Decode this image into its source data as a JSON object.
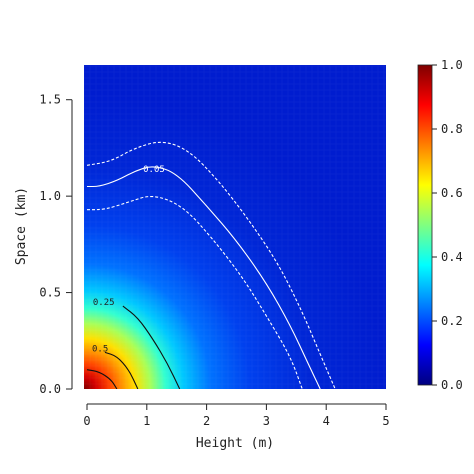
{
  "chart_data": {
    "type": "heatmap",
    "title": "",
    "xlabel": "Height (m)",
    "ylabel": "Space (km)",
    "xlim": [
      0,
      5
    ],
    "ylim": [
      0,
      1.68
    ],
    "x_ticks": [
      0,
      1,
      2,
      3,
      4,
      5
    ],
    "y_ticks": [
      0.0,
      0.5,
      1.0,
      1.5
    ],
    "x_tick_labels": [
      "0",
      "1",
      "2",
      "3",
      "4",
      "5"
    ],
    "y_tick_labels": [
      "0.0",
      "0.5",
      "1.0",
      "1.5"
    ],
    "colorbar": {
      "range": [
        0,
        1
      ],
      "ticks": [
        0.0,
        0.2,
        0.4,
        0.6,
        0.8,
        1.0
      ],
      "tick_labels": [
        "0.0",
        "0.2",
        "0.4",
        "0.6",
        "0.8",
        "1.0"
      ],
      "colormap": "jet"
    },
    "field": {
      "description": "value decays from peak ~1.0 at origin",
      "peak_value": 1.0
    },
    "contours": [
      {
        "level": 0.05,
        "label": "0.05",
        "color": "#ffffff",
        "style": "solid",
        "points": [
          [
            0,
            1.05
          ],
          [
            0.2,
            1.05
          ],
          [
            0.5,
            1.08
          ],
          [
            0.8,
            1.13
          ],
          [
            1.1,
            1.16
          ],
          [
            1.5,
            1.12
          ],
          [
            2.0,
            0.95
          ],
          [
            2.5,
            0.77
          ],
          [
            3.0,
            0.55
          ],
          [
            3.4,
            0.33
          ],
          [
            3.7,
            0.13
          ],
          [
            3.9,
            0.0
          ]
        ]
      },
      {
        "level": 0.05,
        "label": "",
        "color": "#ffffff",
        "style": "dashed",
        "points": [
          [
            0,
            1.16
          ],
          [
            0.4,
            1.18
          ],
          [
            0.8,
            1.25
          ],
          [
            1.25,
            1.29
          ],
          [
            1.7,
            1.24
          ],
          [
            2.2,
            1.08
          ],
          [
            2.7,
            0.88
          ],
          [
            3.2,
            0.65
          ],
          [
            3.6,
            0.4
          ],
          [
            3.9,
            0.18
          ],
          [
            4.15,
            0.0
          ]
        ]
      },
      {
        "level": 0.05,
        "label": "",
        "color": "#ffffff",
        "style": "dashed",
        "points": [
          [
            0,
            0.93
          ],
          [
            0.3,
            0.93
          ],
          [
            0.7,
            0.97
          ],
          [
            1.1,
            1.01
          ],
          [
            1.6,
            0.95
          ],
          [
            2.1,
            0.78
          ],
          [
            2.6,
            0.58
          ],
          [
            3.0,
            0.38
          ],
          [
            3.4,
            0.17
          ],
          [
            3.6,
            0.0
          ]
        ]
      },
      {
        "level": 0.25,
        "label": "0.25",
        "color": "#111111",
        "style": "solid",
        "points": [
          [
            0.6,
            0.43
          ],
          [
            0.85,
            0.37
          ],
          [
            1.1,
            0.26
          ],
          [
            1.35,
            0.13
          ],
          [
            1.55,
            0.0
          ]
        ]
      },
      {
        "level": 0.5,
        "label": "0.5",
        "color": "#111111",
        "style": "solid",
        "points": [
          [
            0.3,
            0.19
          ],
          [
            0.5,
            0.17
          ],
          [
            0.7,
            0.1
          ],
          [
            0.85,
            0.0
          ]
        ]
      },
      {
        "level": 0.75,
        "label": "",
        "color": "#111111",
        "style": "solid",
        "points": [
          [
            0,
            0.1
          ],
          [
            0.2,
            0.09
          ],
          [
            0.4,
            0.05
          ],
          [
            0.5,
            0.0
          ]
        ]
      }
    ],
    "contour_labels": [
      {
        "text": "0.05",
        "x": 1.12,
        "y": 1.14,
        "color": "#ffffff"
      },
      {
        "text": "0.25",
        "x": 0.28,
        "y": 0.45,
        "color": "#222222"
      },
      {
        "text": "0.5",
        "x": 0.22,
        "y": 0.21,
        "color": "#222222"
      }
    ],
    "grid": false,
    "legend": "none"
  }
}
